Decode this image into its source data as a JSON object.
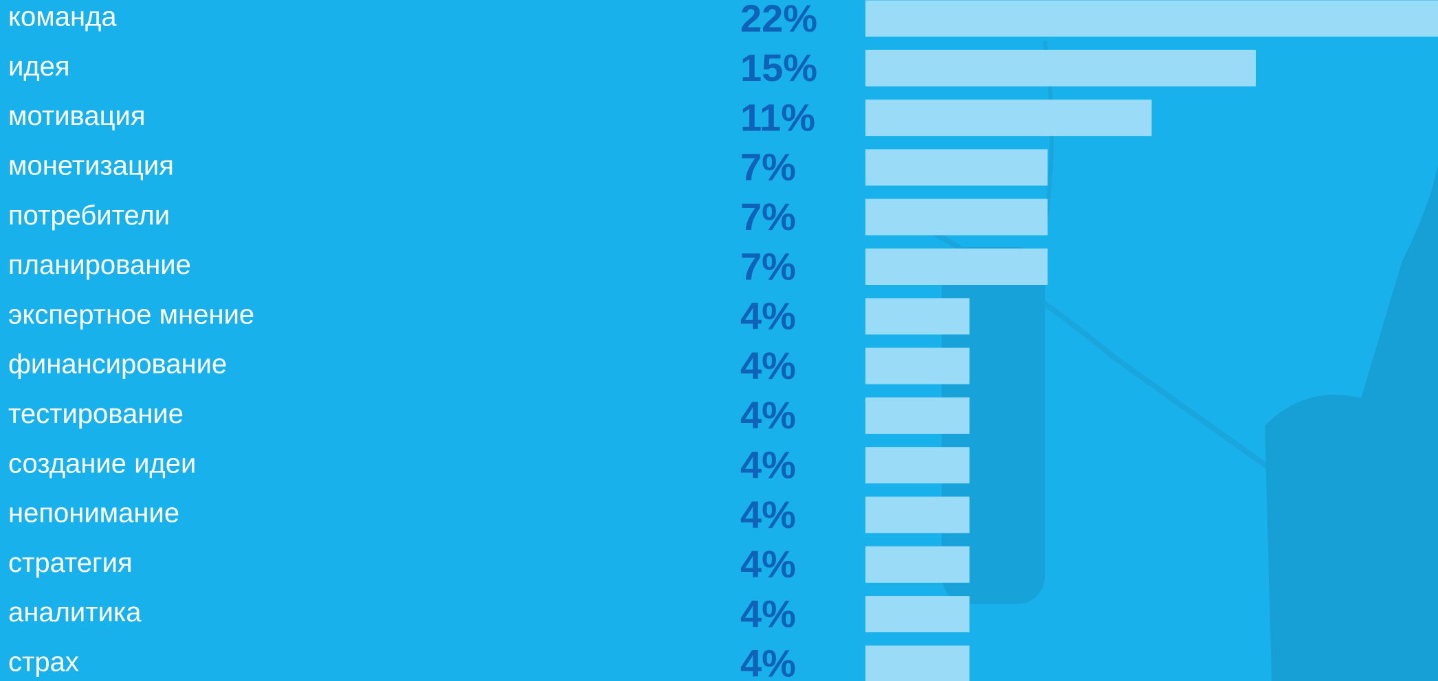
{
  "chart_data": {
    "type": "bar",
    "orientation": "horizontal",
    "categories": [
      "команда",
      "идея",
      "мотивация",
      "монетизация",
      "потребители",
      "планирование",
      "экспертное мнение",
      "финансирование",
      "тестирование",
      "создание идеи",
      "непонимание",
      "стратегия",
      "аналитика",
      "страх"
    ],
    "values": [
      22,
      15,
      11,
      7,
      7,
      7,
      4,
      4,
      4,
      4,
      4,
      4,
      4,
      4
    ],
    "value_labels": [
      "22%",
      "15%",
      "11%",
      "7%",
      "7%",
      "7%",
      "4%",
      "4%",
      "4%",
      "4%",
      "4%",
      "4%",
      "4%",
      "4%"
    ],
    "color": "#9adcf8",
    "label_color": "#0f62b8",
    "xlim": [
      0,
      22
    ]
  }
}
